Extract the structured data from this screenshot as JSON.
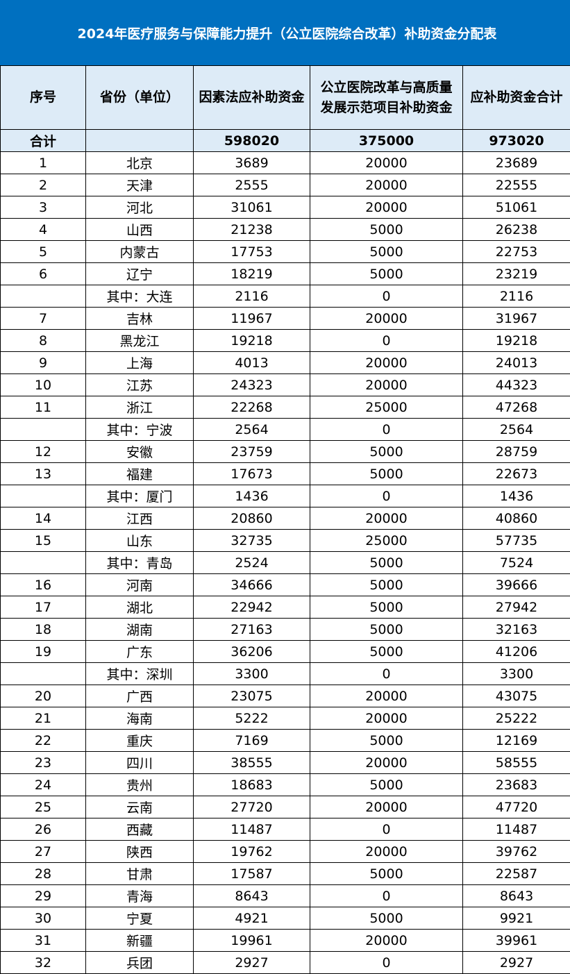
{
  "title": "2024年医疗服务与保障能力提升（公立医院综合改革）补助资金分配表",
  "colors": {
    "title_bg": "#0070c0",
    "header_bg": "#ddebf7"
  },
  "headers": [
    "序号",
    "省份（单位）",
    "因素法应补助资金",
    "公立医院改革与高质量发展示范项目补助资金",
    "应补助资金合计"
  ],
  "total": [
    "合计",
    "",
    "598020",
    "375000",
    "973020"
  ],
  "rows": [
    [
      "1",
      "北京",
      "3689",
      "20000",
      "23689"
    ],
    [
      "2",
      "天津",
      "2555",
      "20000",
      "22555"
    ],
    [
      "3",
      "河北",
      "31061",
      "20000",
      "51061"
    ],
    [
      "4",
      "山西",
      "21238",
      "5000",
      "26238"
    ],
    [
      "5",
      "内蒙古",
      "17753",
      "5000",
      "22753"
    ],
    [
      "6",
      "辽宁",
      "18219",
      "5000",
      "23219"
    ],
    [
      "",
      "其中：大连",
      "2116",
      "0",
      "2116"
    ],
    [
      "7",
      "吉林",
      "11967",
      "20000",
      "31967"
    ],
    [
      "8",
      "黑龙江",
      "19218",
      "0",
      "19218"
    ],
    [
      "9",
      "上海",
      "4013",
      "20000",
      "24013"
    ],
    [
      "10",
      "江苏",
      "24323",
      "20000",
      "44323"
    ],
    [
      "11",
      "浙江",
      "22268",
      "25000",
      "47268"
    ],
    [
      "",
      "其中：宁波",
      "2564",
      "0",
      "2564"
    ],
    [
      "12",
      "安徽",
      "23759",
      "5000",
      "28759"
    ],
    [
      "13",
      "福建",
      "17673",
      "5000",
      "22673"
    ],
    [
      "",
      "其中：厦门",
      "1436",
      "0",
      "1436"
    ],
    [
      "14",
      "江西",
      "20860",
      "20000",
      "40860"
    ],
    [
      "15",
      "山东",
      "32735",
      "25000",
      "57735"
    ],
    [
      "",
      "其中：青岛",
      "2524",
      "5000",
      "7524"
    ],
    [
      "16",
      "河南",
      "34666",
      "5000",
      "39666"
    ],
    [
      "17",
      "湖北",
      "22942",
      "5000",
      "27942"
    ],
    [
      "18",
      "湖南",
      "27163",
      "5000",
      "32163"
    ],
    [
      "19",
      "广东",
      "36206",
      "5000",
      "41206"
    ],
    [
      "",
      "其中：深圳",
      "3300",
      "0",
      "3300"
    ],
    [
      "20",
      "广西",
      "23075",
      "20000",
      "43075"
    ],
    [
      "21",
      "海南",
      "5222",
      "20000",
      "25222"
    ],
    [
      "22",
      "重庆",
      "7169",
      "5000",
      "12169"
    ],
    [
      "23",
      "四川",
      "38555",
      "20000",
      "58555"
    ],
    [
      "24",
      "贵州",
      "18683",
      "5000",
      "23683"
    ],
    [
      "25",
      "云南",
      "27720",
      "20000",
      "47720"
    ],
    [
      "26",
      "西藏",
      "11487",
      "0",
      "11487"
    ],
    [
      "27",
      "陕西",
      "19762",
      "20000",
      "39762"
    ],
    [
      "28",
      "甘肃",
      "17587",
      "5000",
      "22587"
    ],
    [
      "29",
      "青海",
      "8643",
      "0",
      "8643"
    ],
    [
      "30",
      "宁夏",
      "4921",
      "5000",
      "9921"
    ],
    [
      "31",
      "新疆",
      "19961",
      "20000",
      "39961"
    ],
    [
      "32",
      "兵团",
      "2927",
      "0",
      "2927"
    ]
  ]
}
